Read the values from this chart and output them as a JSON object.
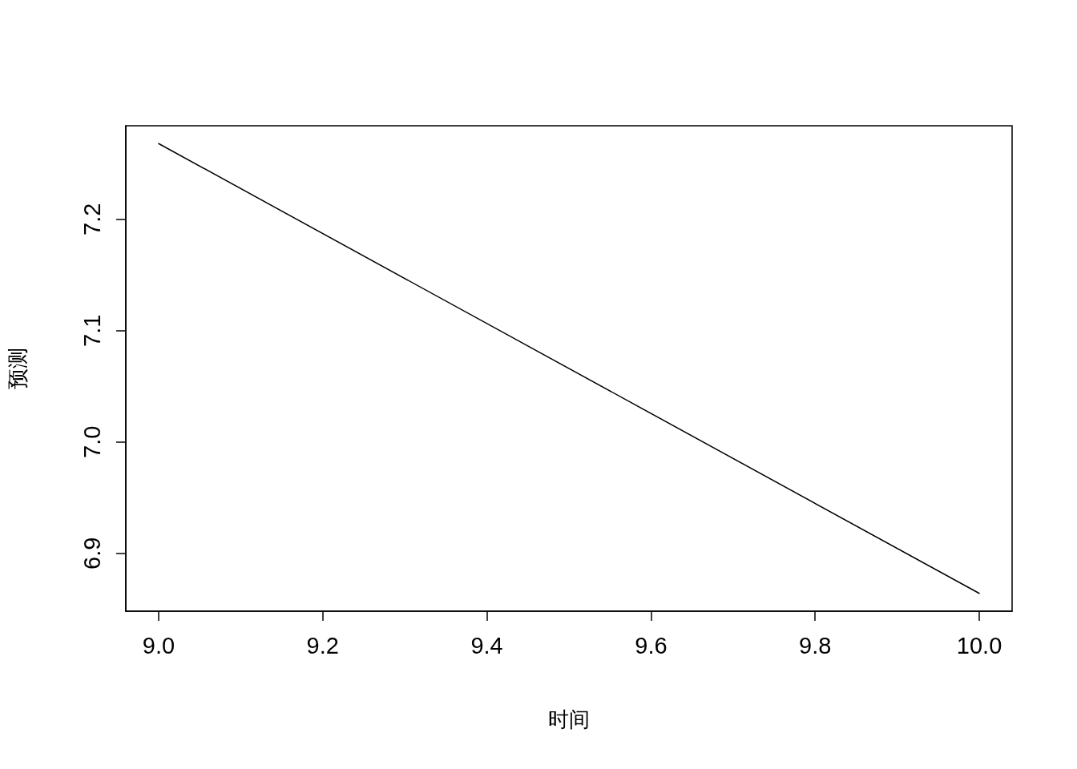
{
  "chart_data": {
    "type": "line",
    "xlabel": "时间",
    "ylabel": "预测",
    "x": [
      9.0,
      10.0
    ],
    "series": [
      {
        "color": "#000000",
        "values": [
          7.268,
          6.864
        ]
      }
    ],
    "xlim": [
      8.96,
      10.04
    ],
    "xticks": [
      {
        "value": 9.0,
        "label": "9.0"
      },
      9.2,
      9.4,
      9.6,
      9.8,
      {
        "value": 10.0,
        "label": "10.0"
      }
    ],
    "ylim": [
      6.848,
      7.284
    ],
    "yticks": [
      6.9,
      {
        "value": 7.0,
        "label": "7.0"
      },
      7.1,
      7.2
    ],
    "grid": false,
    "marker": "none",
    "line_style": "solid"
  }
}
